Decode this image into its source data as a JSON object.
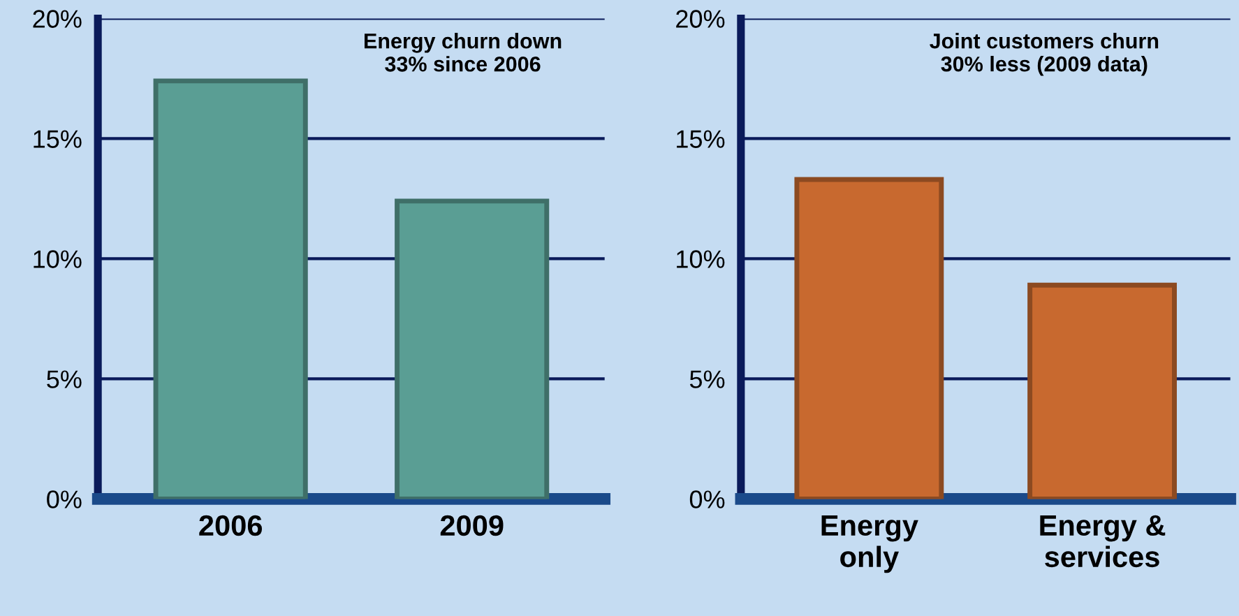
{
  "chart_data": [
    {
      "type": "bar",
      "categories": [
        "2006",
        "2009"
      ],
      "values": [
        17.4,
        12.4
      ],
      "color": "#5a9e94",
      "ylim": [
        0,
        20
      ],
      "yticks": [
        {
          "value": 0,
          "label": "0%"
        },
        {
          "value": 5,
          "label": "5%"
        },
        {
          "value": 10,
          "label": "10%"
        },
        {
          "value": 15,
          "label": "15%"
        },
        {
          "value": 20,
          "label": "20%"
        }
      ],
      "grid": "y",
      "annotations": [
        "Energy churn down\n33% since 2006"
      ]
    },
    {
      "type": "bar",
      "categories": [
        "Energy\nonly",
        "Energy &\nservices"
      ],
      "values": [
        13.3,
        8.9
      ],
      "color": "#c8692f",
      "ylim": [
        0,
        20
      ],
      "yticks": [
        {
          "value": 0,
          "label": "0%"
        },
        {
          "value": 5,
          "label": "5%"
        },
        {
          "value": 10,
          "label": "10%"
        },
        {
          "value": 15,
          "label": "15%"
        },
        {
          "value": 20,
          "label": "20%"
        }
      ],
      "grid": "y",
      "annotations": [
        "Joint customers churn\n30% less (2009 data)"
      ]
    }
  ]
}
